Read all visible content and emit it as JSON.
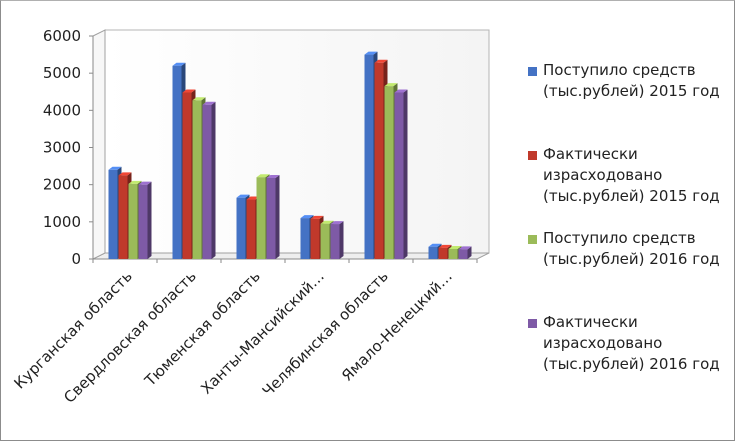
{
  "chart_data": {
    "type": "bar",
    "categories": [
      "Курганская область",
      "Свердловская область",
      "Тюменская область",
      "Ханты-Мансийский…",
      "Челябинская область",
      "Ямало-Ненецкий…"
    ],
    "series": [
      {
        "name": "Поступило средств (тыс.рублей) 2015 год",
        "color": "#4472c4",
        "values": [
          2400,
          5200,
          1650,
          1100,
          5500,
          330
        ]
      },
      {
        "name": "Фактически израсходовано (тыс.рублей) 2015 год",
        "color": "#c0392b",
        "values": [
          2250,
          4480,
          1600,
          1080,
          5280,
          300
        ]
      },
      {
        "name": "Поступило средств (тыс.рублей) 2016 год",
        "color": "#9bbb59",
        "values": [
          2020,
          4270,
          2200,
          950,
          4650,
          270
        ]
      },
      {
        "name": "Фактически израсходовано (тыс.рублей) 2016 год",
        "color": "#7e5aa6",
        "values": [
          2000,
          4150,
          2180,
          940,
          4480,
          260
        ]
      }
    ],
    "yticks": [
      "0",
      "1000",
      "2000",
      "3000",
      "4000",
      "5000",
      "6000"
    ],
    "ylim": [
      0,
      6000
    ],
    "legend_position": "right",
    "grid": false
  }
}
